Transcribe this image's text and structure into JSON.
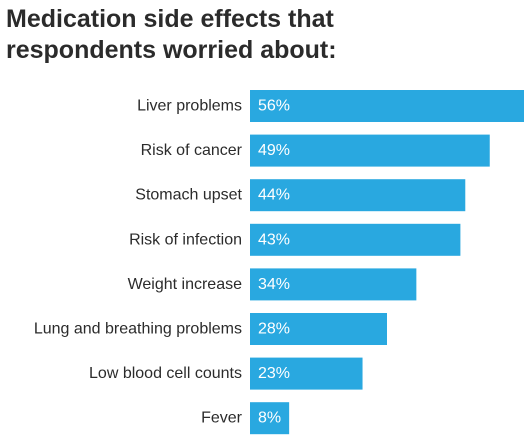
{
  "chart_data": {
    "type": "bar",
    "orientation": "horizontal",
    "title_lines": [
      "Medication side effects that",
      "respondents worried about:"
    ],
    "categories": [
      "Liver problems",
      "Risk of cancer",
      "Stomach upset",
      "Risk of infection",
      "Weight increase",
      "Lung and breathing problems",
      "Low blood cell counts",
      "Fever"
    ],
    "values": [
      56,
      49,
      44,
      43,
      34,
      28,
      23,
      8
    ],
    "value_labels": [
      "56%",
      "49%",
      "44%",
      "43%",
      "34%",
      "28%",
      "23%",
      "8%"
    ],
    "unit": "%",
    "xlim": [
      0,
      56
    ],
    "grid": false,
    "legend": "none",
    "bar_color": "#29a8e0",
    "label_color": "#2b2b2b",
    "value_label_color": "#ffffff"
  }
}
